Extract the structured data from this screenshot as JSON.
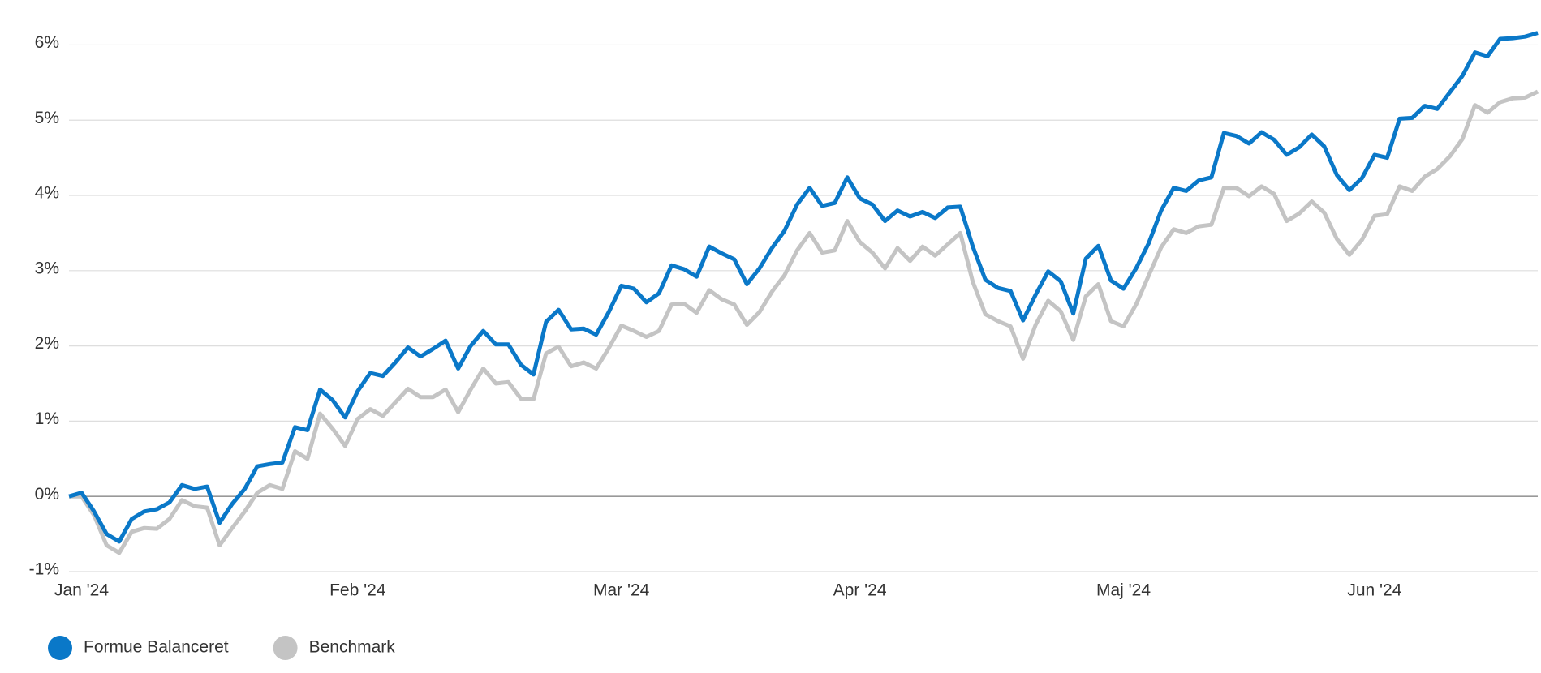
{
  "chart_data": {
    "type": "line",
    "categories": [
      null,
      "Jan '24",
      null,
      null,
      null,
      null,
      null,
      null,
      null,
      null,
      null,
      null,
      null,
      null,
      null,
      null,
      null,
      null,
      null,
      null,
      null,
      null,
      null,
      "Feb '24",
      null,
      null,
      null,
      null,
      null,
      null,
      null,
      null,
      null,
      null,
      null,
      null,
      null,
      null,
      null,
      null,
      null,
      null,
      null,
      null,
      "Mar '24",
      null,
      null,
      null,
      null,
      null,
      null,
      null,
      null,
      null,
      null,
      null,
      null,
      null,
      null,
      null,
      null,
      null,
      null,
      "Apr '24",
      null,
      null,
      null,
      null,
      null,
      null,
      null,
      null,
      null,
      null,
      null,
      null,
      null,
      null,
      null,
      null,
      null,
      null,
      null,
      null,
      "Maj '24",
      null,
      null,
      null,
      null,
      null,
      null,
      null,
      null,
      null,
      null,
      null,
      null,
      null,
      null,
      null,
      null,
      null,
      null,
      null,
      "Jun '24",
      null,
      null,
      null,
      null,
      null,
      null,
      null,
      null,
      null,
      null,
      null,
      null,
      null
    ],
    "series": [
      {
        "name": "Formue Balanceret",
        "color": "#0a78c8",
        "values": [
          0,
          0.05,
          -0.2,
          -0.5,
          -0.6,
          -0.3,
          -0.2,
          -0.17,
          -0.08,
          0.15,
          0.1,
          0.13,
          -0.35,
          -0.1,
          0.1,
          0.4,
          0.43,
          0.45,
          0.92,
          0.88,
          1.42,
          1.28,
          1.05,
          1.4,
          1.64,
          1.6,
          1.78,
          1.98,
          1.86,
          1.96,
          2.07,
          1.7,
          2.0,
          2.2,
          2.02,
          2.02,
          1.75,
          1.62,
          2.32,
          2.48,
          2.22,
          2.23,
          2.15,
          2.45,
          2.8,
          2.76,
          2.58,
          2.7,
          3.07,
          3.02,
          2.92,
          3.32,
          3.23,
          3.15,
          2.82,
          3.03,
          3.3,
          3.53,
          3.88,
          4.1,
          3.86,
          3.9,
          4.24,
          3.96,
          3.88,
          3.66,
          3.8,
          3.72,
          3.78,
          3.7,
          3.84,
          3.85,
          3.32,
          2.88,
          2.77,
          2.73,
          2.34,
          2.68,
          2.99,
          2.86,
          2.43,
          3.16,
          3.33,
          2.87,
          2.76,
          3.03,
          3.36,
          3.8,
          4.1,
          4.06,
          4.2,
          4.24,
          4.83,
          4.79,
          4.69,
          4.84,
          4.74,
          4.54,
          4.64,
          4.81,
          4.65,
          4.27,
          4.07,
          4.23,
          4.54,
          4.5,
          5.02,
          5.03,
          5.19,
          5.15,
          5.37,
          5.59,
          5.9,
          5.85,
          6.08,
          6.09,
          6.11,
          6.16
        ]
      },
      {
        "name": "Benchmark",
        "color": "#c4c4c4",
        "values": [
          0,
          0,
          -0.25,
          -0.65,
          -0.75,
          -0.47,
          -0.42,
          -0.43,
          -0.3,
          -0.05,
          -0.13,
          -0.15,
          -0.65,
          -0.42,
          -0.2,
          0.05,
          0.15,
          0.1,
          0.6,
          0.5,
          1.1,
          0.9,
          0.67,
          1.03,
          1.16,
          1.07,
          1.25,
          1.43,
          1.32,
          1.32,
          1.42,
          1.12,
          1.42,
          1.7,
          1.5,
          1.52,
          1.3,
          1.29,
          1.9,
          1.99,
          1.73,
          1.78,
          1.7,
          1.97,
          2.27,
          2.2,
          2.12,
          2.2,
          2.55,
          2.56,
          2.44,
          2.74,
          2.62,
          2.55,
          2.28,
          2.45,
          2.72,
          2.94,
          3.27,
          3.5,
          3.24,
          3.27,
          3.66,
          3.38,
          3.24,
          3.03,
          3.3,
          3.13,
          3.32,
          3.2,
          3.35,
          3.5,
          2.85,
          2.42,
          2.33,
          2.26,
          1.83,
          2.28,
          2.6,
          2.46,
          2.08,
          2.66,
          2.82,
          2.33,
          2.26,
          2.55,
          2.93,
          3.31,
          3.55,
          3.5,
          3.59,
          3.61,
          4.1,
          4.1,
          3.99,
          4.12,
          4.02,
          3.66,
          3.76,
          3.92,
          3.77,
          3.42,
          3.21,
          3.41,
          3.73,
          3.75,
          4.12,
          4.06,
          4.25,
          4.35,
          4.52,
          4.75,
          5.2,
          5.1,
          5.24,
          5.29,
          5.3,
          5.38
        ]
      }
    ],
    "ylim": [
      -1,
      6.3
    ],
    "yticks": [
      {
        "value": -1,
        "label": "-1%"
      },
      {
        "value": 0,
        "label": "0%"
      },
      {
        "value": 1,
        "label": "1%"
      },
      {
        "value": 2,
        "label": "2%"
      },
      {
        "value": 3,
        "label": "3%"
      },
      {
        "value": 4,
        "label": "4%"
      },
      {
        "value": 5,
        "label": "5%"
      },
      {
        "value": 6,
        "label": "6%"
      }
    ],
    "grid": true,
    "legend": "bottom-left"
  }
}
